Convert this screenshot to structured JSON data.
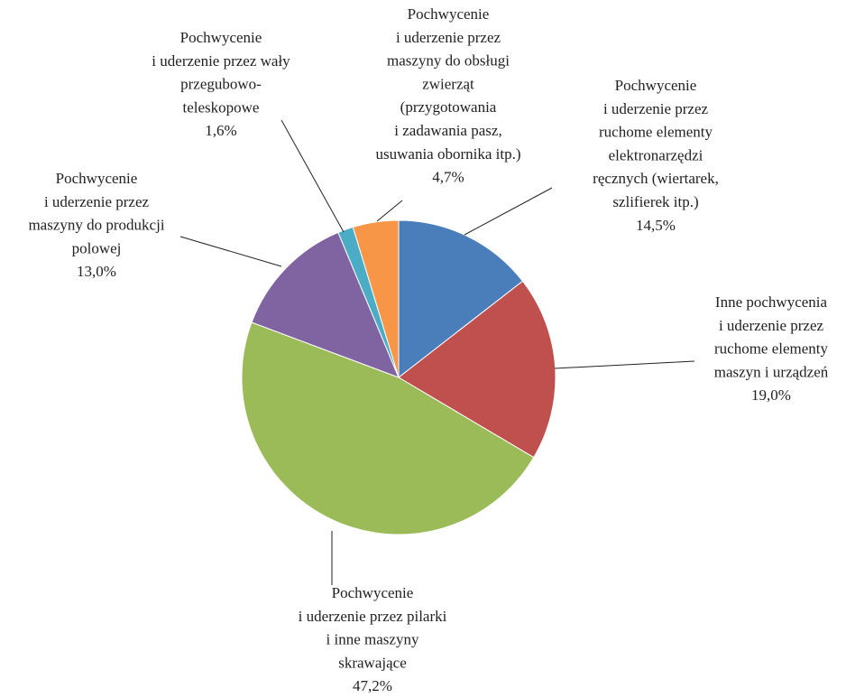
{
  "chart_data": {
    "type": "pie",
    "categories": [
      "Pochwycenie\ni uderzenie przez\nruchome elementy\nelektronarzędzi\nręcznych (wiertarek,\nszlifierek itp.)",
      "Inne pochwycenia\ni uderzenie przez\nruchome elementy\nmaszyn i urządzeń",
      "Pochwycenie\ni uderzenie przez pilarki\ni inne maszyny\nskrawające",
      "Pochwycenie\ni uderzenie przez\nmaszyny do produkcji\npolowej",
      "Pochwycenie\ni uderzenie przez wały\nprzegubowo-\nteleskopowe",
      "Pochwycenie\ni uderzenie przez\nmaszyny do obsługi\nzwierząt\n(przygotowania\ni zadawania pasz,\nusuwania obornika itp.)"
    ],
    "values": [
      14.5,
      19.0,
      47.2,
      13.0,
      1.6,
      4.7
    ],
    "value_labels": [
      "14,5%",
      "19,0%",
      "47,2%",
      "13,0%",
      "1,6%",
      "4,7%"
    ],
    "colors": [
      "#4a7ebb",
      "#c0504d",
      "#9bbb59",
      "#8064a2",
      "#4bacc6",
      "#f79646"
    ]
  }
}
